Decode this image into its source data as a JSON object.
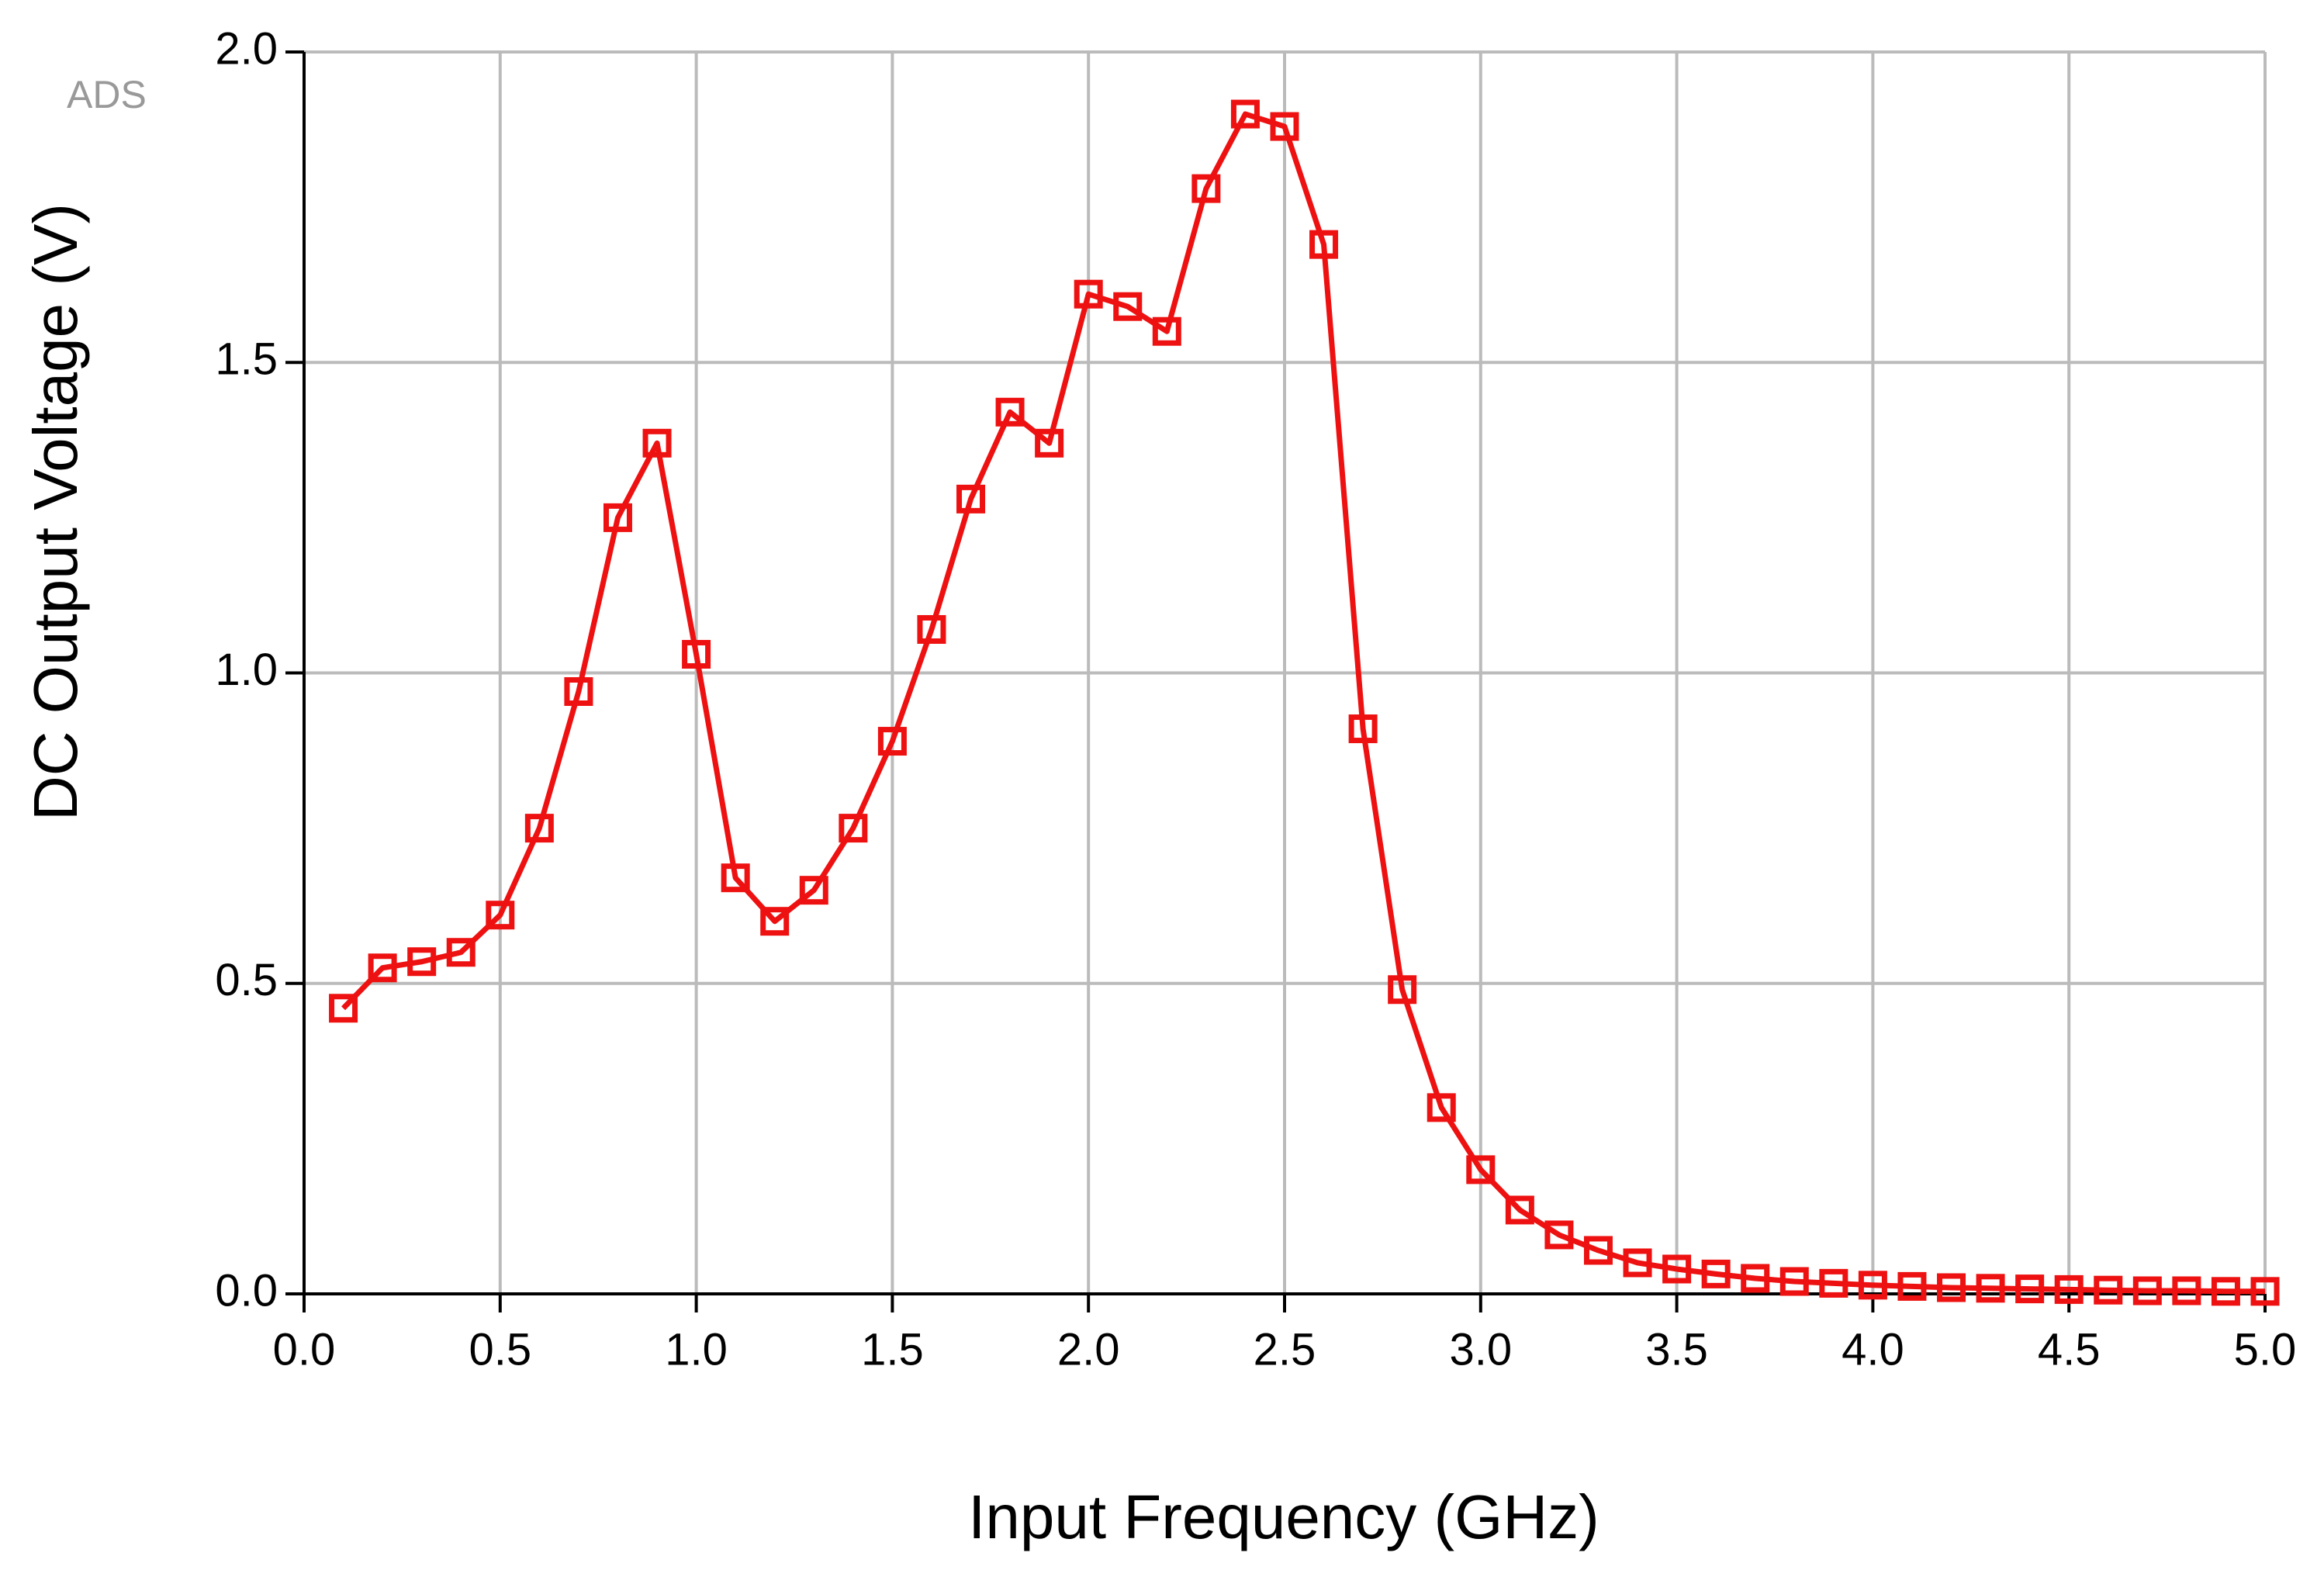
{
  "chart_data": {
    "type": "line",
    "watermark": "ADS",
    "x_label": "Input Frequency (GHz)",
    "y_label": "DC Output Voltage (V)",
    "x": [
      0.1,
      0.2,
      0.3,
      0.4,
      0.5,
      0.6,
      0.7,
      0.8,
      0.9,
      1.0,
      1.1,
      1.2,
      1.3,
      1.4,
      1.5,
      1.6,
      1.7,
      1.8,
      1.9,
      2.0,
      2.1,
      2.2,
      2.3,
      2.4,
      2.5,
      2.6,
      2.7,
      2.8,
      2.9,
      3.0,
      3.1,
      3.2,
      3.3,
      3.4,
      3.5,
      3.6,
      3.7,
      3.8,
      3.9,
      4.0,
      4.1,
      4.2,
      4.3,
      4.4,
      4.5,
      4.6,
      4.7,
      4.8,
      4.9,
      5.0
    ],
    "series": [
      {
        "color": "#ee1111",
        "marker": "square",
        "values": [
          0.46,
          0.525,
          0.535,
          0.55,
          0.61,
          0.75,
          0.97,
          1.25,
          1.37,
          1.03,
          0.67,
          0.6,
          0.65,
          0.75,
          0.89,
          1.07,
          1.28,
          1.42,
          1.37,
          1.61,
          1.59,
          1.55,
          1.78,
          1.9,
          1.88,
          1.69,
          0.91,
          0.49,
          0.3,
          0.2,
          0.135,
          0.095,
          0.07,
          0.05,
          0.04,
          0.032,
          0.025,
          0.02,
          0.017,
          0.014,
          0.012,
          0.01,
          0.009,
          0.008,
          0.007,
          0.006,
          0.005,
          0.005,
          0.004,
          0.004
        ]
      }
    ],
    "xlim": [
      0,
      5
    ],
    "ylim": [
      0,
      2
    ],
    "xticks": [
      {
        "value": 0,
        "label": "0.0"
      },
      0.5,
      {
        "value": 1,
        "label": "1.0"
      },
      1.5,
      {
        "value": 2,
        "label": "2.0"
      },
      2.5,
      {
        "value": 3,
        "label": "3.0"
      },
      3.5,
      {
        "value": 4,
        "label": "4.0"
      },
      4.5,
      {
        "value": 5,
        "label": "5.0"
      }
    ],
    "yticks": [
      {
        "value": 0,
        "label": "0.0"
      },
      0.5,
      {
        "value": 1,
        "label": "1.0"
      },
      1.5,
      {
        "value": 2,
        "label": "2.0"
      }
    ],
    "grid": true
  }
}
